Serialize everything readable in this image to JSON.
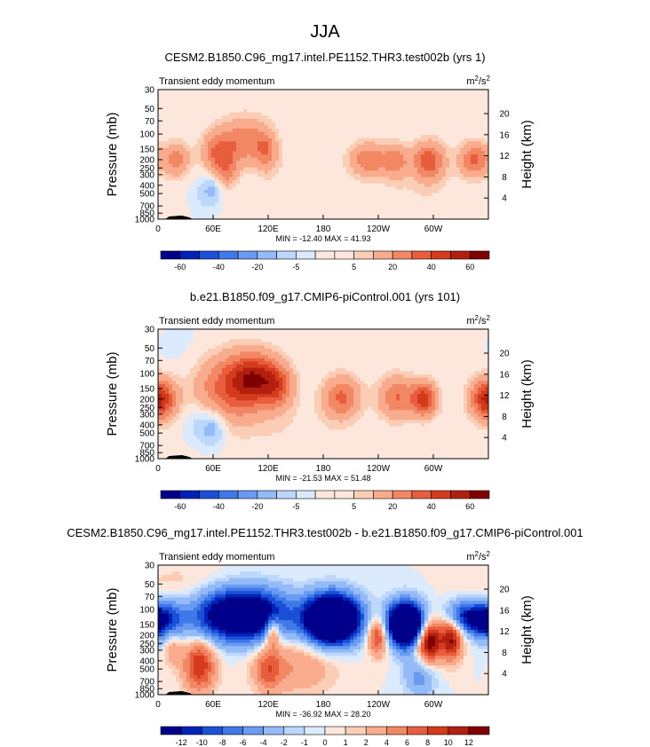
{
  "figure": {
    "title": "JJA"
  },
  "panels": [
    {
      "title": "CESM2.B1850.C96_mg17.intel.PE1152.THR3.test002b (yrs 1)",
      "subtitle_left": "Transient eddy momentum",
      "units": "m²/s²",
      "units_main": "m",
      "units_sup1": "2",
      "units_mid": "/s",
      "units_sup2": "2",
      "ylabel": "Pressure (mb)",
      "ylabel_right": "Height (km)",
      "stats": "MIN = -12.40  MAX =  41.93",
      "blobs": [
        {
          "lon": 20,
          "p": 200,
          "sx": 10,
          "sy": 0.16,
          "v": 25
        },
        {
          "lon": 65,
          "p": 170,
          "sx": 12,
          "sy": 0.2,
          "v": 30
        },
        {
          "lon": 95,
          "p": 120,
          "sx": 18,
          "sy": 0.22,
          "v": 28
        },
        {
          "lon": 118,
          "p": 160,
          "sx": 8,
          "sy": 0.18,
          "v": 22
        },
        {
          "lon": 75,
          "p": 280,
          "sx": 8,
          "sy": 0.15,
          "v": 18
        },
        {
          "lon": 230,
          "p": 200,
          "sx": 15,
          "sy": 0.16,
          "v": 28
        },
        {
          "lon": 260,
          "p": 210,
          "sx": 10,
          "sy": 0.16,
          "v": 22
        },
        {
          "lon": 295,
          "p": 210,
          "sx": 12,
          "sy": 0.18,
          "v": 38
        },
        {
          "lon": 345,
          "p": 200,
          "sx": 12,
          "sy": 0.16,
          "v": 32
        },
        {
          "lon": 60,
          "p": 420,
          "sx": 7,
          "sy": 0.15,
          "v": -10
        },
        {
          "lon": 50,
          "p": 500,
          "sx": 10,
          "sy": 0.22,
          "v": -6
        },
        {
          "lon": 280,
          "p": 600,
          "sx": 40,
          "sy": 0.3,
          "v": 4
        },
        {
          "lon": 150,
          "p": 350,
          "sx": 25,
          "sy": 0.25,
          "v": 4
        }
      ]
    },
    {
      "title": "b.e21.B1850.f09_g17.CMIP6-piControl.001 (yrs 101)",
      "subtitle_left": "Transient eddy momentum",
      "units": "m²/s²",
      "units_main": "m",
      "units_sup1": "2",
      "units_mid": "/s",
      "units_sup2": "2",
      "ylabel": "Pressure (mb)",
      "ylabel_right": "Height (km)",
      "stats": "MIN = -21.53  MAX =  51.48",
      "blobs": [
        {
          "lon": 5,
          "p": 200,
          "sx": 12,
          "sy": 0.18,
          "v": 30
        },
        {
          "lon": 80,
          "p": 150,
          "sx": 28,
          "sy": 0.32,
          "v": 35
        },
        {
          "lon": 105,
          "p": 110,
          "sx": 18,
          "sy": 0.22,
          "v": 40
        },
        {
          "lon": 130,
          "p": 140,
          "sx": 12,
          "sy": 0.2,
          "v": 30
        },
        {
          "lon": 200,
          "p": 190,
          "sx": 14,
          "sy": 0.2,
          "v": 32
        },
        {
          "lon": 260,
          "p": 190,
          "sx": 14,
          "sy": 0.2,
          "v": 30
        },
        {
          "lon": 290,
          "p": 200,
          "sx": 10,
          "sy": 0.16,
          "v": 45
        },
        {
          "lon": 355,
          "p": 200,
          "sx": 12,
          "sy": 0.2,
          "v": 30
        },
        {
          "lon": 60,
          "p": 420,
          "sx": 10,
          "sy": 0.18,
          "v": -18
        },
        {
          "lon": 40,
          "p": 350,
          "sx": 10,
          "sy": 0.2,
          "v": -8
        },
        {
          "lon": 30,
          "p": 60,
          "sx": 25,
          "sy": 0.3,
          "v": -3
        },
        {
          "lon": 150,
          "p": 500,
          "sx": 40,
          "sy": 0.3,
          "v": 4
        }
      ]
    },
    {
      "title": "CESM2.B1850.C96_mg17.intel.PE1152.THR3.test002b - b.e21.B1850.f09_g17.CMIP6-piControl.001",
      "subtitle_left": "Transient eddy momentum",
      "units": "m²/s²",
      "units_main": "m",
      "units_sup1": "2",
      "units_mid": "/s",
      "units_sup2": "2",
      "ylabel": "Pressure (mb)",
      "ylabel_right": "Height (km)",
      "stats": "MIN = -36.92  MAX =  28.20",
      "blobs": [
        {
          "lon": 10,
          "p": 140,
          "sx": 12,
          "sy": 0.2,
          "v": -12
        },
        {
          "lon": 90,
          "p": 115,
          "sx": 35,
          "sy": 0.24,
          "v": -22
        },
        {
          "lon": 190,
          "p": 130,
          "sx": 20,
          "sy": 0.22,
          "v": -32
        },
        {
          "lon": 270,
          "p": 150,
          "sx": 14,
          "sy": 0.2,
          "v": -30
        },
        {
          "lon": 330,
          "p": 120,
          "sx": 12,
          "sy": 0.15,
          "v": -10
        },
        {
          "lon": 350,
          "p": 130,
          "sx": 10,
          "sy": 0.15,
          "v": -12
        },
        {
          "lon": 295,
          "p": 230,
          "sx": 10,
          "sy": 0.2,
          "v": 16
        },
        {
          "lon": 320,
          "p": 220,
          "sx": 8,
          "sy": 0.2,
          "v": 12
        },
        {
          "lon": 240,
          "p": 200,
          "sx": 8,
          "sy": 0.18,
          "v": 10
        },
        {
          "lon": 125,
          "p": 180,
          "sx": 6,
          "sy": 0.15,
          "v": 9
        },
        {
          "lon": 45,
          "p": 450,
          "sx": 12,
          "sy": 0.25,
          "v": 10
        },
        {
          "lon": 15,
          "p": 230,
          "sx": 8,
          "sy": 0.2,
          "v": 6
        },
        {
          "lon": 150,
          "p": 450,
          "sx": 30,
          "sy": 0.28,
          "v": 4
        },
        {
          "lon": 120,
          "p": 500,
          "sx": 10,
          "sy": 0.2,
          "v": 6
        },
        {
          "lon": 285,
          "p": 600,
          "sx": 12,
          "sy": 0.2,
          "v": -5
        },
        {
          "lon": 30,
          "p": 60,
          "sx": 40,
          "sy": 0.25,
          "v": 2
        }
      ]
    }
  ],
  "axes": {
    "pressure_ticks": [
      30,
      50,
      70,
      100,
      150,
      200,
      250,
      300,
      400,
      500,
      700,
      850,
      1000
    ],
    "pressure_range": [
      30,
      1000
    ],
    "lon_range": [
      0,
      360
    ],
    "lon_ticks": [
      {
        "lon": 0,
        "label": "0"
      },
      {
        "lon": 60,
        "label": "60E"
      },
      {
        "lon": 120,
        "label": "120E"
      },
      {
        "lon": 180,
        "label": "180"
      },
      {
        "lon": 240,
        "label": "120W"
      },
      {
        "lon": 300,
        "label": "60W"
      }
    ],
    "height_ticks_km": [
      4,
      8,
      12,
      16,
      20
    ]
  },
  "colorbars": [
    {
      "levels": [
        -60,
        -50,
        -40,
        -30,
        -20,
        -10,
        -5,
        -1,
        1,
        5,
        10,
        20,
        30,
        40,
        50,
        60
      ],
      "labels": [
        "-60",
        "-40",
        "-20",
        "-5",
        "5",
        "20",
        "40",
        "60"
      ]
    },
    {
      "levels": [
        -60,
        -50,
        -40,
        -30,
        -20,
        -10,
        -5,
        -1,
        1,
        5,
        10,
        20,
        30,
        40,
        50,
        60
      ],
      "labels": [
        "-60",
        "-40",
        "-20",
        "-5",
        "5",
        "20",
        "40",
        "60"
      ]
    },
    {
      "levels": [
        -12,
        -10,
        -8,
        -6,
        -4,
        -2,
        -1,
        0,
        1,
        2,
        4,
        6,
        8,
        10,
        12
      ],
      "labels": [
        "-12",
        "-10",
        "-8",
        "-6",
        "-4",
        "-2",
        "-1",
        "0",
        "1",
        "2",
        "4",
        "6",
        "8",
        "10",
        "12"
      ]
    }
  ],
  "palette": [
    "#00008b",
    "#0022b8",
    "#1a4fd6",
    "#3f78e8",
    "#6a9bf2",
    "#94bbf7",
    "#bcd7fb",
    "#dbeafc",
    "#fde7dc",
    "#fbcdb5",
    "#f8ac8d",
    "#f28764",
    "#e85d3d",
    "#d43a1c",
    "#b31f0f",
    "#800000"
  ],
  "chart_data": [
    {
      "type": "heatmap",
      "title": "CESM2.B1850.C96_mg17.intel.PE1152.THR3.test002b (yrs 1)",
      "xlabel": "",
      "ylabel": "Pressure (mb)",
      "xlim": [
        0,
        360
      ],
      "ylim": [
        1000,
        30
      ],
      "min": -12.4,
      "max": 41.93
    },
    {
      "type": "heatmap",
      "title": "b.e21.B1850.f09_g17.CMIP6-piControl.001 (yrs 101)",
      "xlabel": "",
      "ylabel": "Pressure (mb)",
      "xlim": [
        0,
        360
      ],
      "ylim": [
        1000,
        30
      ],
      "min": -21.53,
      "max": 51.48
    },
    {
      "type": "heatmap",
      "title": "CESM2.B1850.C96_mg17.intel.PE1152.THR3.test002b - b.e21.B1850.f09_g17.CMIP6-piControl.001",
      "xlabel": "",
      "ylabel": "Pressure (mb)",
      "xlim": [
        0,
        360
      ],
      "ylim": [
        1000,
        30
      ],
      "min": -36.92,
      "max": 28.2
    }
  ]
}
